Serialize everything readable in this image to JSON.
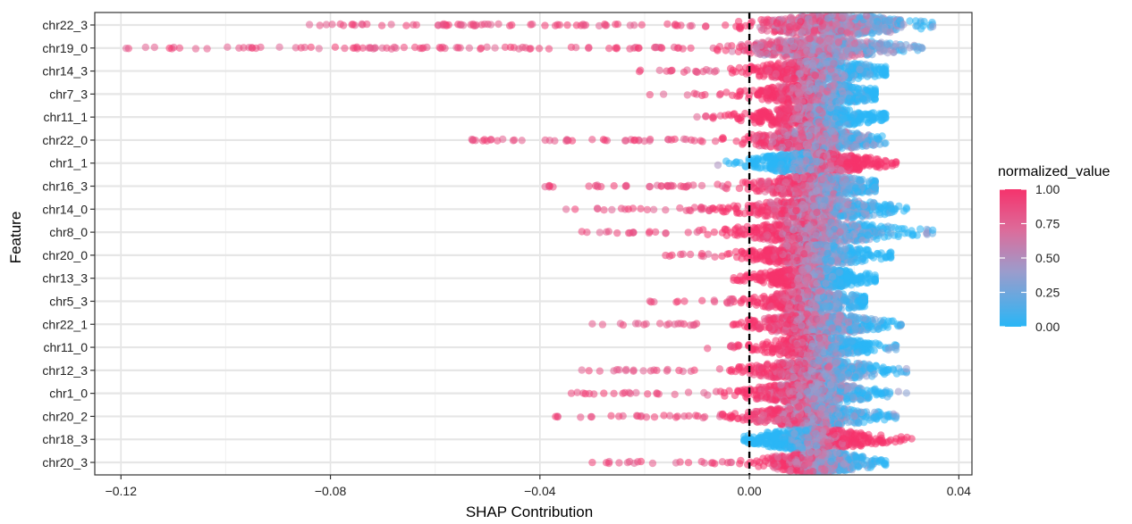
{
  "chart_data": {
    "type": "scatter",
    "subtype": "beeswarm",
    "title": "",
    "xlabel": "SHAP Contribution",
    "ylabel": "Feature",
    "xlim": [
      -0.125,
      0.0425
    ],
    "x_ticks": [
      -0.12,
      -0.08,
      -0.04,
      0.0,
      0.04
    ],
    "x_tick_labels": [
      "−0.12",
      "−0.08",
      "−0.04",
      "0.00",
      "0.04"
    ],
    "reference_line": {
      "x": 0.0,
      "style": "dashed",
      "color": "#000000"
    },
    "grid": true,
    "legend": {
      "title": "normalized_value",
      "placement": "right",
      "type": "colorbar",
      "ticks": [
        1.0,
        0.75,
        0.5,
        0.25,
        0.0
      ],
      "tick_labels": [
        "1.00",
        "0.75",
        "0.50",
        "0.25",
        "0.00"
      ],
      "colors": {
        "low": "#29b6f6",
        "mid": "#9b9ccc",
        "high": "#f0356e"
      }
    },
    "features": [
      {
        "name": "chr22_3",
        "min": -0.084,
        "max": 0.035,
        "median": 0.016,
        "spread": 0.009,
        "high_side": "negative"
      },
      {
        "name": "chr19_0",
        "min": -0.119,
        "max": 0.033,
        "median": 0.013,
        "spread": 0.008,
        "high_side": "negative"
      },
      {
        "name": "chr14_3",
        "min": -0.021,
        "max": 0.026,
        "median": 0.013,
        "spread": 0.007,
        "high_side": "negative"
      },
      {
        "name": "chr7_3",
        "min": -0.019,
        "max": 0.024,
        "median": 0.013,
        "spread": 0.007,
        "high_side": "negative"
      },
      {
        "name": "chr11_1",
        "min": -0.01,
        "max": 0.026,
        "median": 0.012,
        "spread": 0.007,
        "high_side": "negative"
      },
      {
        "name": "chr22_0",
        "min": -0.053,
        "max": 0.026,
        "median": 0.012,
        "spread": 0.007,
        "high_side": "negative"
      },
      {
        "name": "chr1_1",
        "min": -0.006,
        "max": 0.028,
        "median": 0.012,
        "spread": 0.007,
        "high_side": "positive"
      },
      {
        "name": "chr16_3",
        "min": -0.039,
        "max": 0.024,
        "median": 0.013,
        "spread": 0.007,
        "high_side": "negative"
      },
      {
        "name": "chr14_0",
        "min": -0.035,
        "max": 0.03,
        "median": 0.013,
        "spread": 0.008,
        "high_side": "negative"
      },
      {
        "name": "chr8_0",
        "min": -0.032,
        "max": 0.035,
        "median": 0.013,
        "spread": 0.009,
        "high_side": "negative"
      },
      {
        "name": "chr20_0",
        "min": -0.016,
        "max": 0.027,
        "median": 0.012,
        "spread": 0.007,
        "high_side": "negative"
      },
      {
        "name": "chr13_3",
        "min": -0.003,
        "max": 0.024,
        "median": 0.012,
        "spread": 0.006,
        "high_side": "negative"
      },
      {
        "name": "chr5_3",
        "min": -0.019,
        "max": 0.022,
        "median": 0.012,
        "spread": 0.006,
        "high_side": "negative"
      },
      {
        "name": "chr22_1",
        "min": -0.03,
        "max": 0.029,
        "median": 0.013,
        "spread": 0.007,
        "high_side": "negative"
      },
      {
        "name": "chr11_0",
        "min": -0.008,
        "max": 0.028,
        "median": 0.013,
        "spread": 0.006,
        "high_side": "negative"
      },
      {
        "name": "chr12_3",
        "min": -0.032,
        "max": 0.03,
        "median": 0.013,
        "spread": 0.007,
        "high_side": "negative"
      },
      {
        "name": "chr1_0",
        "min": -0.034,
        "max": 0.03,
        "median": 0.012,
        "spread": 0.007,
        "high_side": "negative"
      },
      {
        "name": "chr20_2",
        "min": -0.037,
        "max": 0.028,
        "median": 0.012,
        "spread": 0.007,
        "high_side": "negative"
      },
      {
        "name": "chr18_3",
        "min": -0.001,
        "max": 0.031,
        "median": 0.012,
        "spread": 0.007,
        "high_side": "positive"
      },
      {
        "name": "chr20_3",
        "min": -0.03,
        "max": 0.026,
        "median": 0.013,
        "spread": 0.006,
        "high_side": "negative"
      }
    ]
  }
}
